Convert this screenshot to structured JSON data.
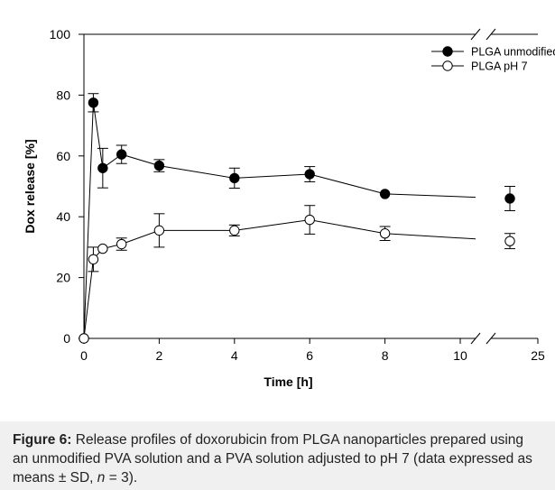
{
  "chart_data": {
    "type": "line",
    "xlabel": "Time [h]",
    "ylabel": "Dox release [%]",
    "xlim": [
      0,
      25
    ],
    "ylim": [
      0,
      100
    ],
    "x_ticks": [
      0,
      2,
      4,
      6,
      8,
      10,
      25
    ],
    "y_ticks": [
      0,
      20,
      40,
      60,
      80,
      100
    ],
    "axis_break": "between 10 and 25 on x axis",
    "grid": false,
    "legend_position": "top-right",
    "series": [
      {
        "name": "PLGA unmodified",
        "marker": "filled-circle",
        "color": "#000000",
        "x": [
          0,
          0.25,
          0.5,
          1,
          2,
          4,
          6,
          8,
          24
        ],
        "y": [
          0,
          77.5,
          56,
          60.5,
          56.8,
          52.7,
          54,
          47.5,
          46
        ],
        "error": [
          0,
          3,
          6.5,
          3,
          2,
          3.3,
          2.5,
          0,
          4
        ]
      },
      {
        "name": "PLGA pH 7",
        "marker": "open-circle",
        "color": "#000000",
        "x": [
          0,
          0.25,
          0.5,
          1,
          2,
          4,
          6,
          8,
          24
        ],
        "y": [
          0,
          26,
          29.5,
          31,
          35.5,
          35.5,
          39,
          34.5,
          32
        ],
        "error": [
          0,
          4,
          0,
          2,
          5.5,
          1.8,
          4.7,
          2.3,
          2.5
        ]
      }
    ]
  },
  "caption": {
    "label": "Figure 6:",
    "text_1": " Release profiles of doxorubicin from PLGA nanoparticles prepared using an unmodified PVA solution and a PVA solution adjusted to pH 7 (data expressed as means ± SD, ",
    "n": "n",
    "text_2": " = 3)."
  }
}
